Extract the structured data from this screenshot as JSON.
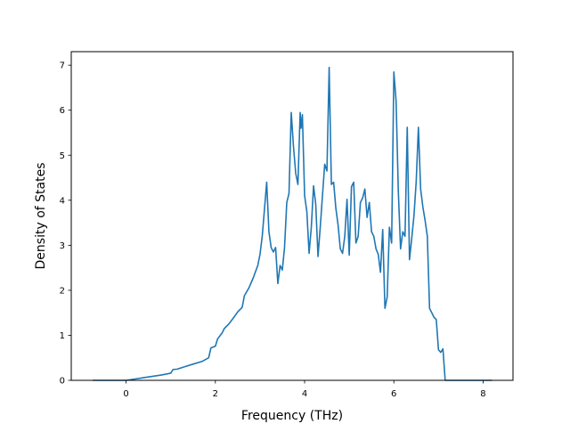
{
  "chart_data": {
    "type": "line",
    "title": "",
    "xlabel": "Frequency (THz)",
    "ylabel": "Density of States",
    "xlim": [
      -1.23,
      8.67
    ],
    "ylim": [
      0,
      7.3
    ],
    "x_ticks": [
      0,
      2,
      4,
      6,
      8
    ],
    "y_ticks": [
      0,
      1,
      2,
      3,
      4,
      5,
      6,
      7
    ],
    "grid": false,
    "legend": "none",
    "line_color": "#1f77b4",
    "series": [
      {
        "x": [
          -0.75,
          -0.4,
          0.0,
          0.2,
          0.4,
          0.6,
          0.8,
          1.0,
          1.05,
          1.15,
          1.3,
          1.5,
          1.7,
          1.85,
          1.9,
          2.0,
          2.05,
          2.15,
          2.2,
          2.3,
          2.4,
          2.5,
          2.6,
          2.65,
          2.75,
          2.85,
          2.95,
          3.0,
          3.05,
          3.1,
          3.15,
          3.2,
          3.25,
          3.3,
          3.35,
          3.4,
          3.45,
          3.5,
          3.55,
          3.6,
          3.65,
          3.7,
          3.75,
          3.8,
          3.85,
          3.9,
          3.92,
          3.95,
          4.0,
          4.05,
          4.1,
          4.15,
          4.2,
          4.25,
          4.3,
          4.35,
          4.4,
          4.45,
          4.5,
          4.55,
          4.6,
          4.65,
          4.7,
          4.75,
          4.8,
          4.85,
          4.9,
          4.95,
          5.0,
          5.05,
          5.1,
          5.15,
          5.2,
          5.25,
          5.3,
          5.35,
          5.4,
          5.45,
          5.5,
          5.55,
          5.6,
          5.65,
          5.7,
          5.75,
          5.8,
          5.85,
          5.9,
          5.95,
          6.0,
          6.05,
          6.1,
          6.15,
          6.2,
          6.25,
          6.3,
          6.35,
          6.4,
          6.45,
          6.5,
          6.55,
          6.6,
          6.65,
          6.7,
          6.75,
          6.8,
          6.85,
          6.9,
          6.95,
          7.0,
          7.05,
          7.1,
          7.15,
          7.2,
          7.25,
          7.3,
          7.35,
          7.4,
          7.45,
          7.5,
          8.0,
          8.2
        ],
        "y": [
          0,
          0,
          0,
          0.03,
          0.06,
          0.09,
          0.12,
          0.16,
          0.24,
          0.25,
          0.3,
          0.36,
          0.42,
          0.5,
          0.72,
          0.76,
          0.92,
          1.05,
          1.15,
          1.25,
          1.38,
          1.52,
          1.62,
          1.88,
          2.05,
          2.28,
          2.55,
          2.8,
          3.2,
          3.8,
          4.4,
          3.3,
          2.95,
          2.85,
          2.95,
          2.15,
          2.55,
          2.45,
          2.95,
          3.95,
          4.15,
          5.95,
          5.2,
          4.6,
          4.35,
          5.95,
          5.6,
          5.9,
          4.1,
          3.75,
          2.82,
          3.4,
          4.32,
          3.9,
          2.75,
          3.4,
          4.1,
          4.8,
          4.65,
          6.95,
          4.35,
          4.4,
          3.82,
          3.45,
          2.92,
          2.82,
          3.2,
          4.02,
          2.78,
          4.3,
          4.4,
          3.05,
          3.2,
          3.95,
          4.05,
          4.25,
          3.62,
          3.95,
          3.3,
          3.2,
          2.92,
          2.8,
          2.4,
          3.35,
          1.6,
          1.85,
          3.4,
          3.05,
          6.85,
          6.2,
          4.2,
          2.92,
          3.3,
          3.2,
          5.62,
          2.68,
          3.15,
          3.65,
          4.4,
          5.62,
          4.25,
          3.85,
          3.55,
          3.2,
          1.6,
          1.5,
          1.4,
          1.35,
          0.68,
          0.62,
          0.7,
          0,
          0,
          0,
          0,
          0,
          0,
          0,
          0,
          0,
          0
        ]
      }
    ]
  }
}
